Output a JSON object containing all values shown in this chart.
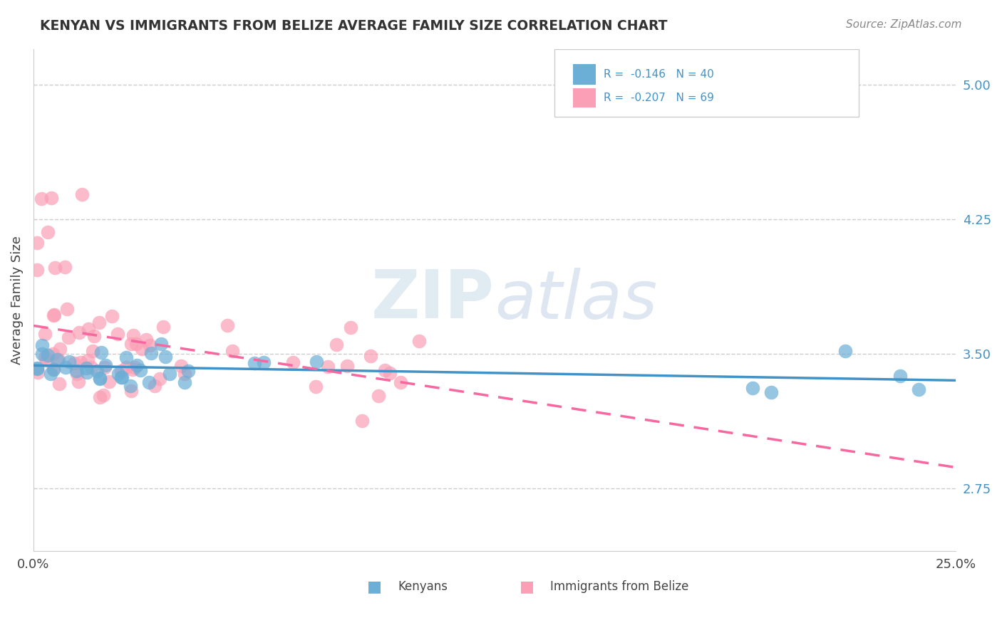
{
  "title": "KENYAN VS IMMIGRANTS FROM BELIZE AVERAGE FAMILY SIZE CORRELATION CHART",
  "source": "Source: ZipAtlas.com",
  "ylabel": "Average Family Size",
  "legend_r_blue": "R =  -0.146",
  "legend_n_blue": "N = 40",
  "legend_r_pink": "R =  -0.207",
  "legend_n_pink": "N = 69",
  "yticks_right": [
    2.75,
    3.5,
    4.25,
    5.0
  ],
  "xlim": [
    0.0,
    0.25
  ],
  "ylim": [
    2.4,
    5.2
  ],
  "color_blue": "#6baed6",
  "color_pink": "#fa9fb5",
  "trend_blue": "#4292c6",
  "trend_pink": "#f768a1",
  "background": "#ffffff",
  "legend_bottom_blue": "Kenyans",
  "legend_bottom_pink": "Immigrants from Belize"
}
